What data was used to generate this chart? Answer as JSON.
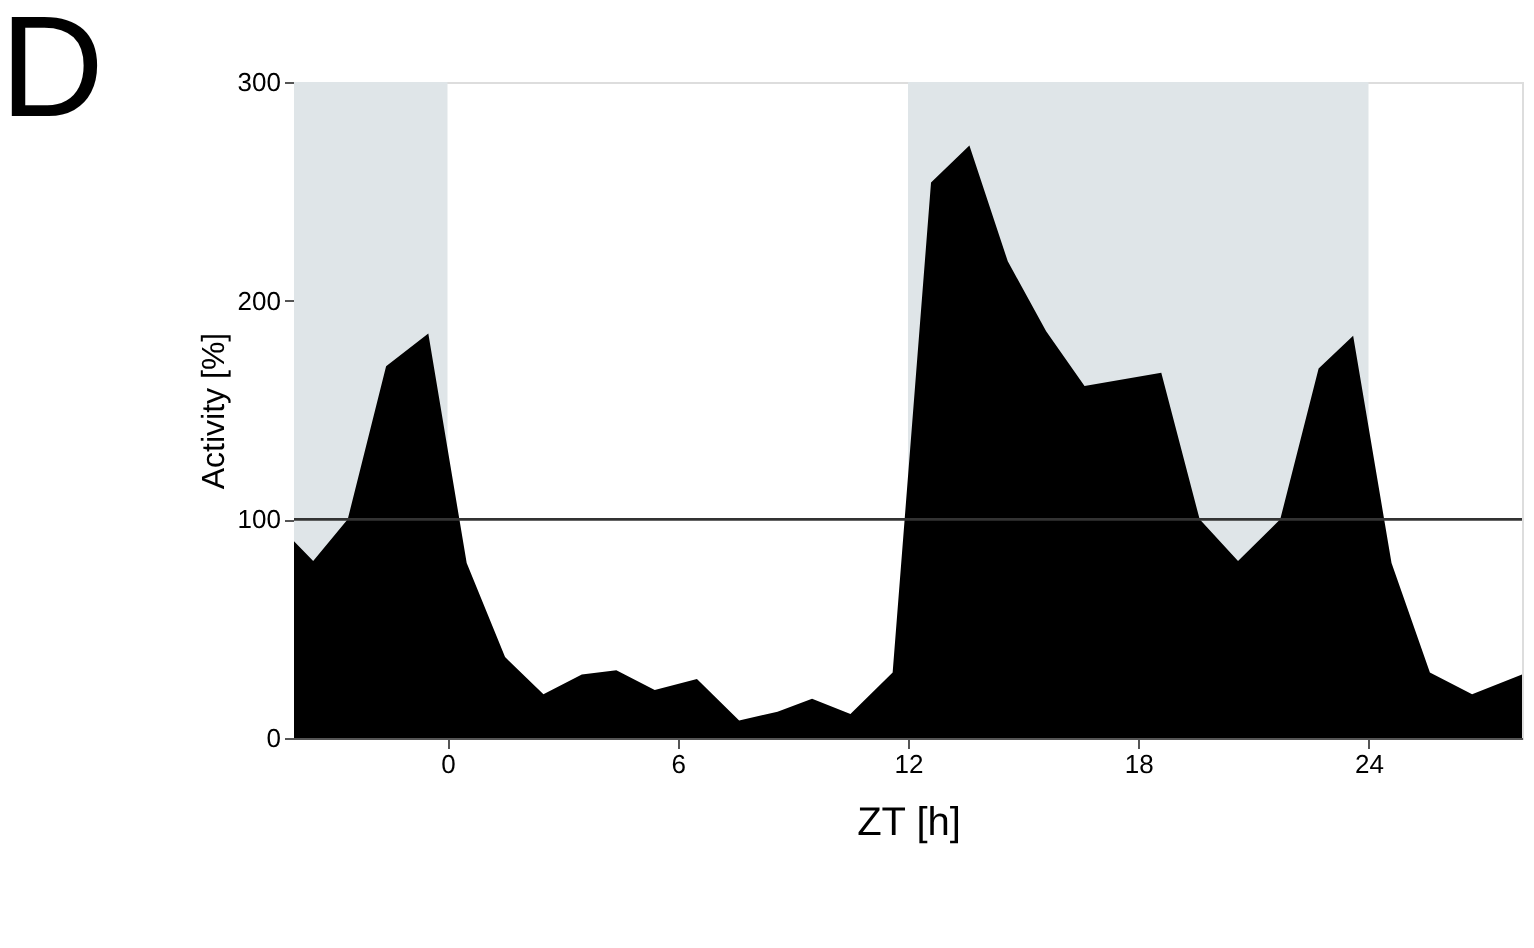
{
  "chart_data": {
    "type": "area",
    "xlabel": "ZT [h]",
    "ylabel": "Activity [%]",
    "annotations": [
      "D"
    ],
    "x": [
      -4,
      -3.5,
      -2.6,
      -1.6,
      -0.5,
      0.5,
      1.5,
      2.5,
      3.5,
      4.4,
      5.4,
      6.5,
      7.6,
      8.6,
      9.5,
      10.5,
      11.6,
      12.6,
      13.6,
      14.6,
      15.6,
      16.6,
      18.6,
      19.6,
      20.6,
      21.7,
      22.7,
      23.6,
      24.6,
      25.6,
      26.7,
      28
    ],
    "series": [
      {
        "color": "#000000",
        "values": [
          90,
          81,
          100,
          170,
          185,
          80,
          37,
          20,
          29,
          31,
          22,
          27,
          8,
          12,
          18,
          11,
          30,
          254,
          271,
          218,
          186,
          161,
          167,
          100,
          81,
          100,
          169,
          184,
          80,
          30,
          20,
          29
        ]
      }
    ],
    "xlim": [
      -4,
      28
    ],
    "xticks": [
      0,
      6,
      12,
      18,
      24
    ],
    "ylim": [
      0,
      300
    ],
    "yticks": [
      0,
      100,
      200,
      300
    ],
    "grid": false,
    "ref_lines": [
      {
        "axis": "y",
        "value": 100,
        "color": "#333333"
      }
    ],
    "bands": [
      {
        "axis": "x",
        "from": -4,
        "to": 0,
        "color": "#dfe5e8"
      },
      {
        "axis": "x",
        "from": 12,
        "to": 24,
        "color": "#dfe5e8"
      }
    ]
  }
}
